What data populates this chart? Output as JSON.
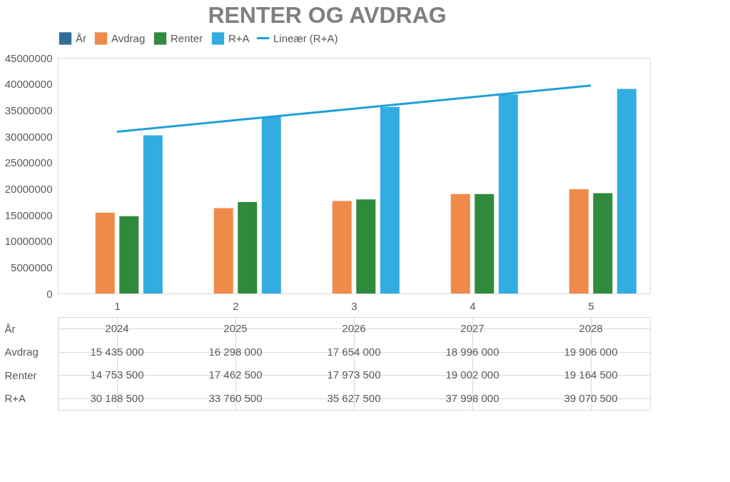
{
  "chart_data": {
    "type": "bar",
    "title": "RENTER OG AVDRAG",
    "categories": [
      "1",
      "2",
      "3",
      "4",
      "5"
    ],
    "series": [
      {
        "name": "År",
        "color": "#2e6e99",
        "values": [
          2024,
          2025,
          2026,
          2027,
          2028
        ],
        "value_labels": [
          "2024",
          "2025",
          "2026",
          "2027",
          "2028"
        ]
      },
      {
        "name": "Avdrag",
        "color": "#ef8a4a",
        "values": [
          15435000,
          16298000,
          17654000,
          18996000,
          19906000
        ],
        "value_labels": [
          "15 435 000",
          "16 298 000",
          "17 654 000",
          "18 996 000",
          "19 906 000"
        ]
      },
      {
        "name": "Renter",
        "color": "#2f8a3c",
        "values": [
          14753500,
          17462500,
          17973500,
          19002000,
          19164500
        ],
        "value_labels": [
          "14 753 500",
          "17 462 500",
          "17 973 500",
          "19 002 000",
          "19 164 500"
        ]
      },
      {
        "name": "R+A",
        "color": "#33ace2",
        "values": [
          30188500,
          33760500,
          35627500,
          37998000,
          39070500
        ],
        "value_labels": [
          "30 188 500",
          "33 760 500",
          "35 627 500",
          "37 998 000",
          "39 070 500"
        ]
      },
      {
        "name": "Lineær (R+A)",
        "type": "line",
        "color": "#1fa0d8",
        "line_style": "solid",
        "marker": "none",
        "values": [
          30900000,
          33100000,
          35300000,
          37500000,
          39700000
        ]
      }
    ],
    "ylim": [
      0,
      45000000
    ],
    "yticks": [
      0,
      5000000,
      10000000,
      15000000,
      20000000,
      25000000,
      30000000,
      35000000,
      40000000,
      45000000
    ],
    "grid": false,
    "legend": "top"
  }
}
